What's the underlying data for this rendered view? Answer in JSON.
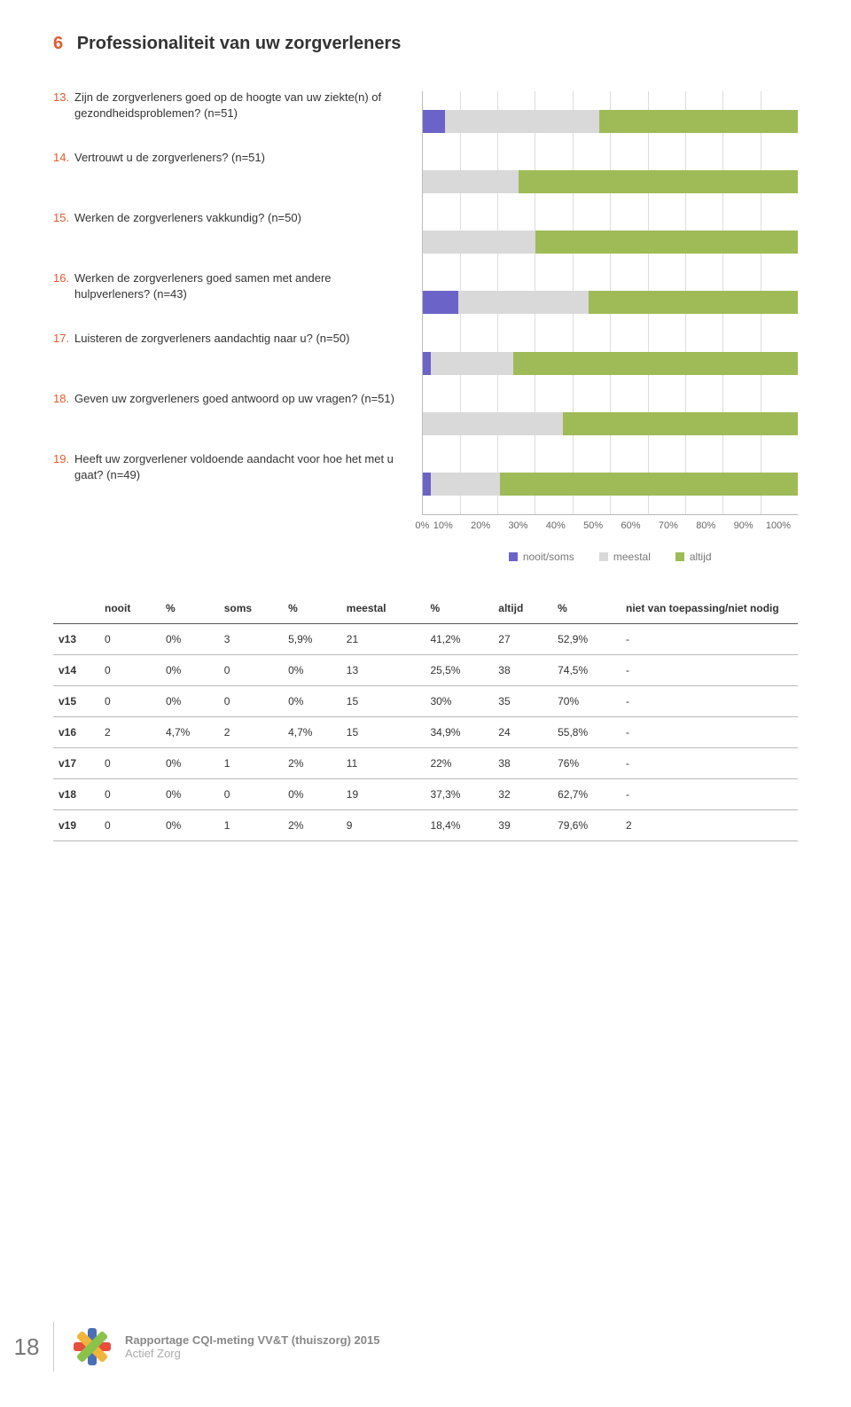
{
  "colors": {
    "accent": "#e25b2b",
    "nooit_soms": "#6c63c8",
    "meestal": "#d9d9d9",
    "altijd": "#9fbb58",
    "logo_red": "#e84e3c",
    "logo_blue": "#4a6fb5",
    "logo_yellow": "#f2b53a",
    "logo_green": "#8bc34a"
  },
  "section": {
    "number": "6",
    "title": "Professionaliteit van uw zorgverleners"
  },
  "questions": [
    {
      "num": "13.",
      "text": "Zijn de zorgverleners goed op de hoogte van uw ziekte(n) of gezondheidsproblemen? (n=51)"
    },
    {
      "num": "14.",
      "text": "Vertrouwt u de zorgverleners? (n=51)"
    },
    {
      "num": "15.",
      "text": "Werken de zorgverleners vakkundig? (n=50)"
    },
    {
      "num": "16.",
      "text": "Werken de zorgverleners goed samen met andere hulpverleners? (n=43)"
    },
    {
      "num": "17.",
      "text": "Luisteren de zorgverleners aandachtig naar u? (n=50)"
    },
    {
      "num": "18.",
      "text": "Geven uw zorgverleners goed antwoord op uw vragen? (n=51)"
    },
    {
      "num": "19.",
      "text": "Heeft uw zorgverlener voldoende aandacht voor hoe het met u gaat? (n=49)"
    }
  ],
  "chart": {
    "type": "stacked-bar",
    "xlabels": [
      "0%",
      "10%",
      "20%",
      "30%",
      "40%",
      "50%",
      "60%",
      "70%",
      "80%",
      "90%",
      "100%"
    ],
    "series": [
      {
        "key": "nooit_soms",
        "label": "nooit/soms"
      },
      {
        "key": "meestal",
        "label": "meestal"
      },
      {
        "key": "altijd",
        "label": "altijd"
      }
    ],
    "rows": [
      {
        "nooit_soms": 5.9,
        "meestal": 41.2,
        "altijd": 52.9
      },
      {
        "nooit_soms": 0,
        "meestal": 25.5,
        "altijd": 74.5
      },
      {
        "nooit_soms": 0,
        "meestal": 30.0,
        "altijd": 70.0
      },
      {
        "nooit_soms": 9.4,
        "meestal": 34.9,
        "altijd": 55.8
      },
      {
        "nooit_soms": 2.0,
        "meestal": 22.0,
        "altijd": 76.0
      },
      {
        "nooit_soms": 0,
        "meestal": 37.3,
        "altijd": 62.7
      },
      {
        "nooit_soms": 2.0,
        "meestal": 18.4,
        "altijd": 79.6
      }
    ]
  },
  "table": {
    "headers": [
      "",
      "nooit",
      "%",
      "soms",
      "%",
      "meestal",
      "%",
      "altijd",
      "%",
      "niet van toepassing/niet nodig"
    ],
    "rows": [
      [
        "v13",
        "0",
        "0%",
        "3",
        "5,9%",
        "21",
        "41,2%",
        "27",
        "52,9%",
        "-"
      ],
      [
        "v14",
        "0",
        "0%",
        "0",
        "0%",
        "13",
        "25,5%",
        "38",
        "74,5%",
        "-"
      ],
      [
        "v15",
        "0",
        "0%",
        "0",
        "0%",
        "15",
        "30%",
        "35",
        "70%",
        "-"
      ],
      [
        "v16",
        "2",
        "4,7%",
        "2",
        "4,7%",
        "15",
        "34,9%",
        "24",
        "55,8%",
        "-"
      ],
      [
        "v17",
        "0",
        "0%",
        "1",
        "2%",
        "11",
        "22%",
        "38",
        "76%",
        "-"
      ],
      [
        "v18",
        "0",
        "0%",
        "0",
        "0%",
        "19",
        "37,3%",
        "32",
        "62,7%",
        "-"
      ],
      [
        "v19",
        "0",
        "0%",
        "1",
        "2%",
        "9",
        "18,4%",
        "39",
        "79,6%",
        "2"
      ]
    ]
  },
  "footer": {
    "page": "18",
    "line1": "Rapportage CQI-meting VV&T (thuiszorg) 2015",
    "line2": "Actief Zorg"
  }
}
